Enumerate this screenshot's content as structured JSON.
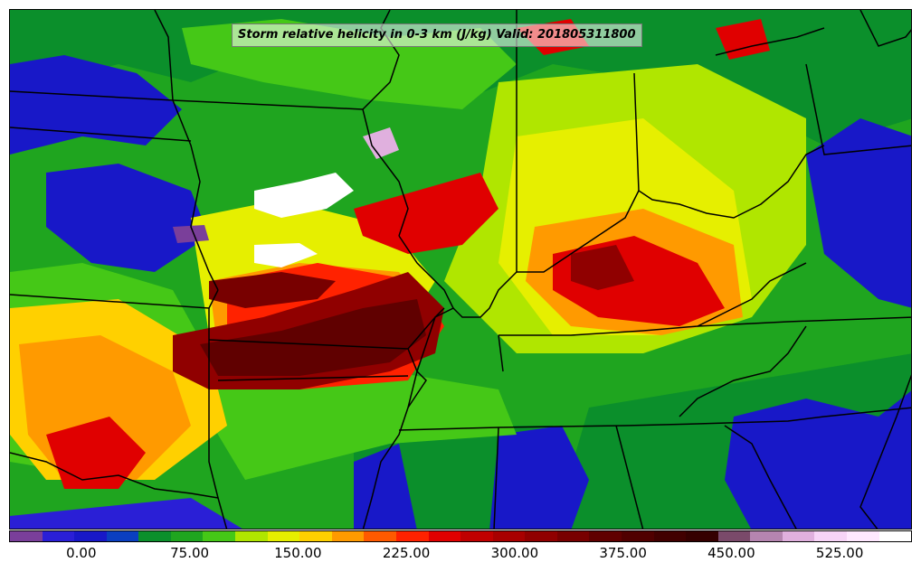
{
  "title": "Storm relative helicity in 0-3 km (J/kg) Valid: 201805311800",
  "colorbar": {
    "colors": [
      "#7a3f9a",
      "#2a1fd6",
      "#1818c8",
      "#0a3fc0",
      "#0b8f2b",
      "#1fa51f",
      "#45c817",
      "#b0e600",
      "#e6ef00",
      "#ffd000",
      "#ff9a00",
      "#ff5a00",
      "#ff2200",
      "#e00000",
      "#c00000",
      "#a80000",
      "#900000",
      "#780000",
      "#600000",
      "#500000",
      "#410000",
      "#350000",
      "#7a4a6a",
      "#b585b0",
      "#e0b0de",
      "#f7d4f7",
      "#ffe8ff",
      "#ffffff"
    ],
    "tick_labels": [
      "0.00",
      "75.00",
      "150.00",
      "225.00",
      "300.00",
      "375.00",
      "450.00",
      "525.00"
    ],
    "tick_values": [
      0,
      75,
      150,
      225,
      300,
      375,
      450,
      525
    ],
    "range": [
      -50,
      575
    ]
  },
  "palette": {
    "frame": "#000000",
    "border_lines": "#000000"
  }
}
